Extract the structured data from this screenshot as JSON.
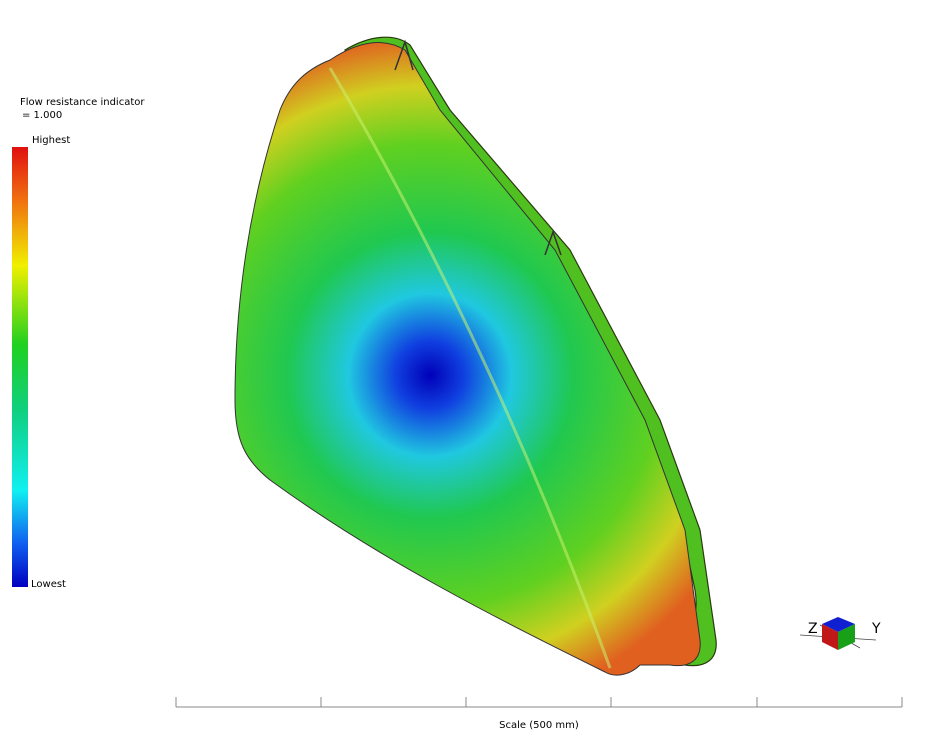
{
  "legend": {
    "title": "Flow resistance indicator",
    "value": "= 1.000",
    "high": "Highest",
    "low": "Lowest"
  },
  "scale": {
    "label": "Scale (500 mm)"
  },
  "axes": {
    "z": "Z",
    "y": "Y"
  }
}
